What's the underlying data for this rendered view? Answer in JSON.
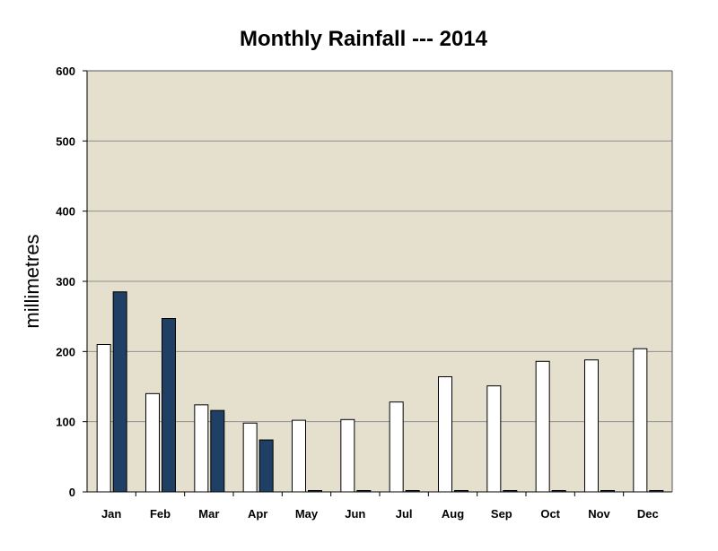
{
  "chart_data": {
    "type": "bar",
    "title": "Monthly Rainfall --- 2014",
    "xlabel": "",
    "ylabel": "millimetres",
    "categories": [
      "Jan",
      "Feb",
      "Mar",
      "Apr",
      "May",
      "Jun",
      "Jul",
      "Aug",
      "Sep",
      "Oct",
      "Nov",
      "Dec"
    ],
    "series": [
      {
        "values": [
          210,
          140,
          124,
          98,
          102,
          103,
          128,
          164,
          151,
          186,
          188,
          204
        ],
        "color": "#ffffff"
      },
      {
        "values": [
          285,
          247,
          116,
          74,
          0,
          0,
          0,
          0,
          0,
          0,
          0,
          0
        ],
        "color": "#1f3f64"
      }
    ],
    "ylim": [
      0,
      600
    ],
    "yticks": [
      0,
      100,
      200,
      300,
      400,
      500,
      600
    ],
    "grid": true,
    "plot_background": "#e5e0cd"
  }
}
